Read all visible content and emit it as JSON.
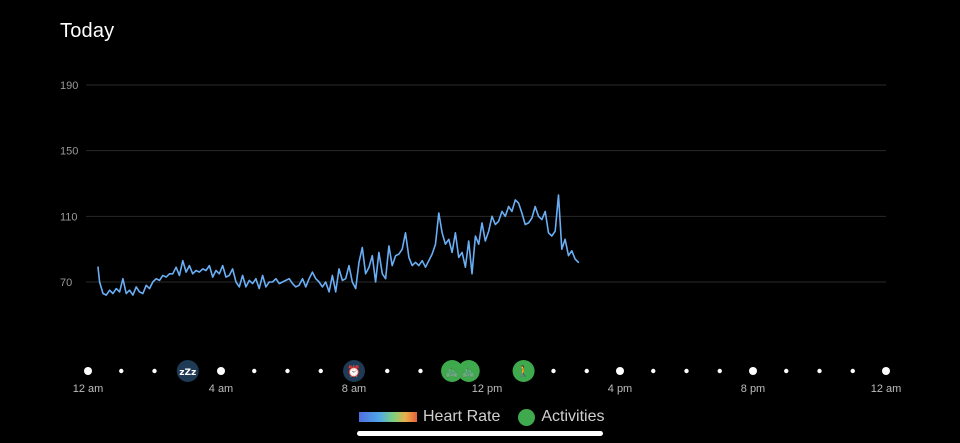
{
  "header": {
    "title": "Today"
  },
  "legend": {
    "heart_rate_label": "Heart Rate",
    "activities_label": "Activities"
  },
  "colors": {
    "line": "#6aaef5",
    "grid": "#2a2a2a",
    "activity": "#3fa94d",
    "sleep_marker": "#1f3a55",
    "alarm_marker": "#1f3a55"
  },
  "markers": [
    {
      "type": "sleep",
      "icon": "sleep-zzz-icon",
      "glyph": "zZz",
      "time_h": 3.0
    },
    {
      "type": "alarm",
      "icon": "alarm-clock-icon",
      "glyph": "⏰",
      "time_h": 8.0
    },
    {
      "type": "activity",
      "icon": "cycling-icon",
      "glyph": "🚲",
      "time_h": 10.95
    },
    {
      "type": "activity",
      "icon": "cycling-icon",
      "glyph": "🚲",
      "time_h": 11.45
    },
    {
      "type": "activity",
      "icon": "walking-icon",
      "glyph": "🚶",
      "time_h": 13.1
    }
  ],
  "chart_data": {
    "type": "line",
    "title": "",
    "xlabel": "",
    "ylabel": "",
    "x_unit": "hour of day",
    "x_range": [
      0,
      24
    ],
    "x_ticks": [
      "12 am",
      "4 am",
      "8 am",
      "12 pm",
      "4 pm",
      "8 pm",
      "12 am"
    ],
    "y_ticks": [
      190,
      150,
      110,
      70
    ],
    "ylim": [
      40,
      200
    ],
    "grid": true,
    "legend": "bottom",
    "series": [
      {
        "name": "Heart Rate",
        "x": [
          0.3,
          0.35,
          0.45,
          0.55,
          0.65,
          0.75,
          0.85,
          0.95,
          1.05,
          1.15,
          1.25,
          1.35,
          1.45,
          1.55,
          1.65,
          1.75,
          1.85,
          1.95,
          2.05,
          2.15,
          2.25,
          2.35,
          2.45,
          2.55,
          2.65,
          2.75,
          2.85,
          2.95,
          3.05,
          3.15,
          3.25,
          3.35,
          3.45,
          3.55,
          3.65,
          3.75,
          3.85,
          3.95,
          4.05,
          4.15,
          4.25,
          4.35,
          4.45,
          4.55,
          4.65,
          4.75,
          4.85,
          4.95,
          5.05,
          5.15,
          5.25,
          5.35,
          5.45,
          5.55,
          5.65,
          5.75,
          5.85,
          5.95,
          6.05,
          6.15,
          6.25,
          6.35,
          6.45,
          6.55,
          6.65,
          6.75,
          6.85,
          6.95,
          7.05,
          7.15,
          7.25,
          7.35,
          7.45,
          7.55,
          7.65,
          7.75,
          7.85,
          7.95,
          8.05,
          8.15,
          8.25,
          8.35,
          8.45,
          8.55,
          8.65,
          8.75,
          8.85,
          8.95,
          9.05,
          9.15,
          9.25,
          9.35,
          9.45,
          9.55,
          9.65,
          9.75,
          9.85,
          9.95,
          10.05,
          10.15,
          10.25,
          10.35,
          10.45,
          10.55,
          10.65,
          10.75,
          10.85,
          10.95,
          11.05,
          11.15,
          11.25,
          11.35,
          11.45,
          11.55,
          11.65,
          11.75,
          11.85,
          11.95,
          12.05,
          12.15,
          12.25,
          12.35,
          12.45,
          12.55,
          12.65,
          12.75,
          12.85,
          12.95,
          13.05,
          13.15,
          13.25,
          13.35,
          13.45,
          13.55,
          13.65,
          13.75,
          13.85,
          13.95,
          14.05,
          14.15,
          14.25,
          14.35,
          14.45,
          14.55,
          14.65,
          14.75
        ],
        "values": [
          79,
          70,
          63,
          62,
          65,
          63,
          66,
          64,
          72,
          63,
          65,
          62,
          67,
          64,
          63,
          68,
          66,
          70,
          72,
          71,
          74,
          73,
          75,
          75,
          79,
          74,
          83,
          76,
          80,
          75,
          77,
          76,
          78,
          77,
          80,
          73,
          77,
          75,
          80,
          73,
          74,
          78,
          70,
          67,
          74,
          67,
          71,
          69,
          72,
          66,
          74,
          67,
          70,
          70,
          72,
          69,
          70,
          71,
          72,
          69,
          67,
          68,
          72,
          67,
          72,
          76,
          72,
          70,
          67,
          70,
          64,
          74,
          64,
          78,
          71,
          72,
          80,
          70,
          66,
          82,
          91,
          75,
          79,
          86,
          70,
          88,
          75,
          72,
          92,
          80,
          86,
          87,
          90,
          100,
          85,
          80,
          82,
          80,
          83,
          79,
          83,
          87,
          93,
          112,
          100,
          93,
          96,
          88,
          100,
          85,
          88,
          79,
          95,
          75,
          98,
          93,
          106,
          95,
          101,
          110,
          105,
          107,
          113,
          110,
          116,
          113,
          120,
          118,
          112,
          105,
          106,
          109,
          116,
          110,
          108,
          113,
          100,
          98,
          101,
          123,
          90,
          96,
          86,
          89,
          84,
          82
        ]
      }
    ]
  }
}
